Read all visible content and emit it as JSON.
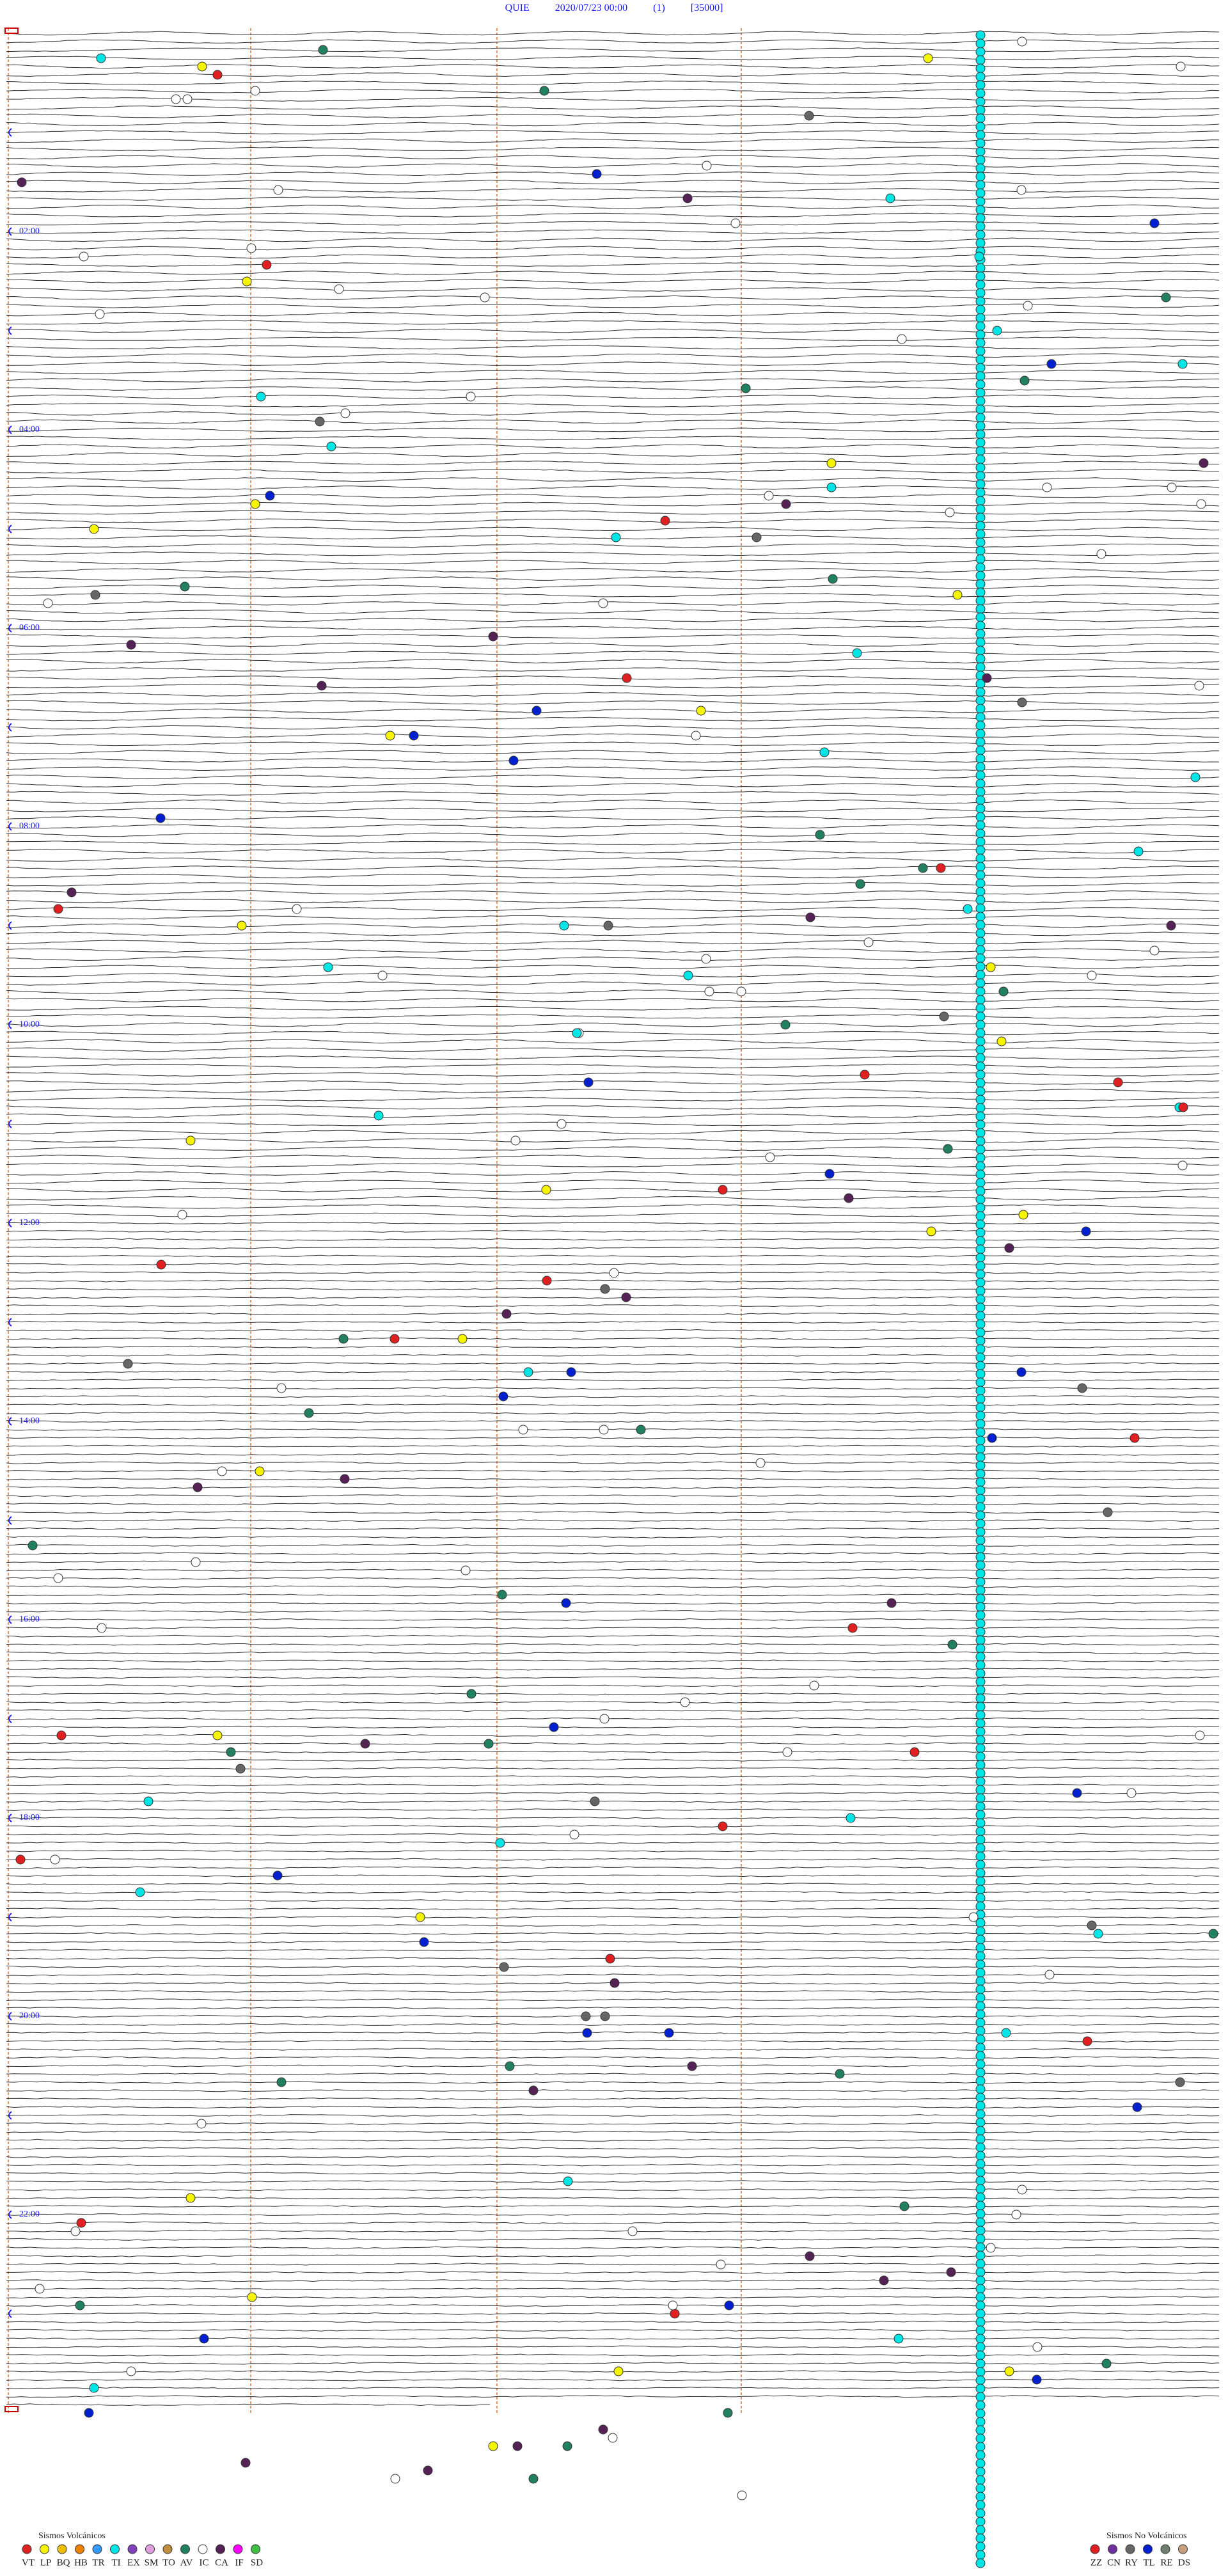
{
  "header": {
    "station": "QUIE",
    "datetime": "2020/07/23 00:00",
    "channel": "(1)",
    "scale": "[35000]"
  },
  "hour_labels": [
    "02:00",
    "04:00",
    "06:00",
    "08:00",
    "10:00",
    "12:00",
    "14:00",
    "16:00",
    "18:00",
    "20:00",
    "22:00"
  ],
  "legend_volcanic": {
    "title": "Sismos Volcánicos",
    "items": [
      {
        "label": "VT",
        "color": "#e02020"
      },
      {
        "label": "LP",
        "color": "#f5f500"
      },
      {
        "label": "BQ",
        "color": "#f0c000"
      },
      {
        "label": "HB",
        "color": "#f08000"
      },
      {
        "label": "TR",
        "color": "#3399ff"
      },
      {
        "label": "TI",
        "color": "#00e5e5"
      },
      {
        "label": "EX",
        "color": "#8040c0"
      },
      {
        "label": "SM",
        "color": "#e0a0e0"
      },
      {
        "label": "TO",
        "color": "#c09040"
      },
      {
        "label": "AV",
        "color": "#208060"
      },
      {
        "label": "IC",
        "color": "#ffffff"
      },
      {
        "label": "CA",
        "color": "#552255"
      },
      {
        "label": "IF",
        "color": "#ff00ff"
      },
      {
        "label": "SD",
        "color": "#40c040"
      }
    ]
  },
  "legend_non_volcanic": {
    "title": "Sismos No Volcánicos",
    "items": [
      {
        "label": "ZZ",
        "color": "#e02020"
      },
      {
        "label": "CN",
        "color": "#7030a0"
      },
      {
        "label": "RY",
        "color": "#666666"
      },
      {
        "label": "TL",
        "color": "#0020d0"
      },
      {
        "label": "RE",
        "color": "#708070"
      },
      {
        "label": "DS",
        "color": "#c8a080"
      }
    ]
  }
}
